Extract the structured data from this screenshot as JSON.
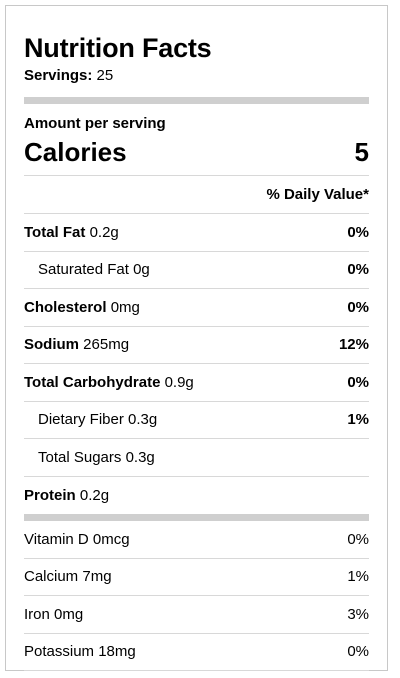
{
  "title": "Nutrition Facts",
  "servings": {
    "label": "Servings:",
    "value": "25"
  },
  "amount_per_serving": "Amount per serving",
  "calories": {
    "label": "Calories",
    "value": "5"
  },
  "daily_value_header": "% Daily Value*",
  "nutrients": [
    {
      "name": "Total Fat",
      "amount": "0.2g",
      "dv": "0%"
    },
    {
      "name": "Saturated Fat",
      "amount": "0g",
      "dv": "0%"
    },
    {
      "name": "Cholesterol",
      "amount": "0mg",
      "dv": "0%"
    },
    {
      "name": "Sodium",
      "amount": "265mg",
      "dv": "12%"
    },
    {
      "name": "Total Carbohydrate",
      "amount": "0.9g",
      "dv": "0%"
    },
    {
      "name": "Dietary Fiber",
      "amount": "0.3g",
      "dv": "1%"
    },
    {
      "name": "Total Sugars",
      "amount": "0.3g",
      "dv": ""
    },
    {
      "name": "Protein",
      "amount": "0.2g",
      "dv": ""
    }
  ],
  "vitamins": [
    {
      "name": "Vitamin D",
      "amount": "0mcg",
      "dv": "0%"
    },
    {
      "name": "Calcium",
      "amount": "7mg",
      "dv": "1%"
    },
    {
      "name": "Iron",
      "amount": "0mg",
      "dv": "3%"
    },
    {
      "name": "Potassium",
      "amount": "18mg",
      "dv": "0%"
    }
  ]
}
